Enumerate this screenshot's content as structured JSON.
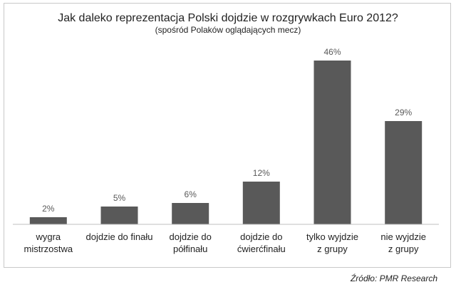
{
  "chart_data": {
    "type": "bar",
    "title": "Jak daleko reprezentacja  Polski dojdzie w rozgrywkach Euro 2012?",
    "subtitle": "(spośród Polaków oglądających mecz)",
    "categories": [
      [
        "wygra",
        "mistrzostwa"
      ],
      [
        "dojdzie do finału"
      ],
      [
        "dojdzie do",
        "półfinału"
      ],
      [
        "dojdzie do",
        "ćwierćfinału"
      ],
      [
        "tylko wyjdzie",
        "z grupy"
      ],
      [
        "nie wyjdzie",
        "z grupy"
      ]
    ],
    "values": [
      2,
      5,
      6,
      12,
      46,
      29
    ],
    "value_labels": [
      "2%",
      "5%",
      "6%",
      "12%",
      "46%",
      "29%"
    ],
    "unit": "%",
    "ylim": [
      0,
      50
    ],
    "xlabel": "",
    "ylabel": "",
    "grid": false,
    "bar_color": "#595959"
  },
  "source": "Źródło: PMR Research"
}
